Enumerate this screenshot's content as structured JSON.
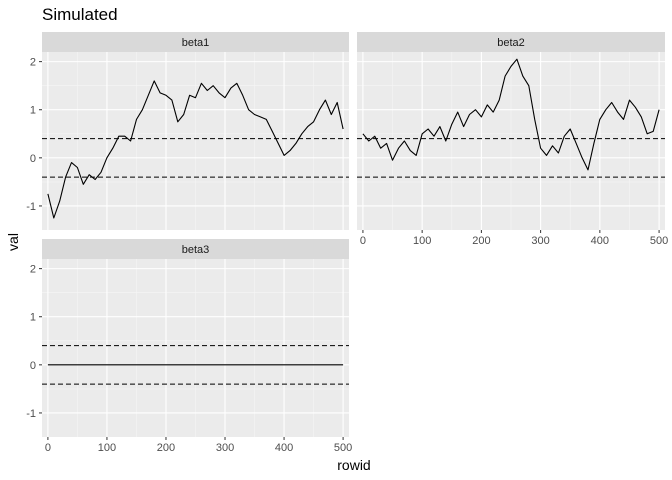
{
  "chart_data": {
    "type": "line",
    "title": "Simulated",
    "xlabel": "rowid",
    "ylabel": "val",
    "xlim": [
      -10,
      510
    ],
    "ylim": [
      -1.5,
      2.2
    ],
    "x_ticks": [
      0,
      100,
      200,
      300,
      400,
      500
    ],
    "y_ticks": [
      -1,
      0,
      1,
      2
    ],
    "reference_lines": [
      0.4,
      -0.4
    ],
    "reference_line_style": "dashed",
    "grid": true,
    "panels": [
      {
        "name": "beta1",
        "x": [
          0,
          10,
          20,
          30,
          40,
          50,
          60,
          70,
          80,
          90,
          100,
          110,
          120,
          130,
          140,
          150,
          160,
          170,
          180,
          190,
          200,
          210,
          220,
          230,
          240,
          250,
          260,
          270,
          280,
          290,
          300,
          310,
          320,
          330,
          340,
          350,
          360,
          370,
          380,
          390,
          400,
          410,
          420,
          430,
          440,
          450,
          460,
          470,
          480,
          490,
          500
        ],
        "values": [
          -0.75,
          -1.25,
          -0.9,
          -0.4,
          -0.1,
          -0.2,
          -0.55,
          -0.35,
          -0.45,
          -0.3,
          0.0,
          0.2,
          0.45,
          0.45,
          0.35,
          0.8,
          1.0,
          1.3,
          1.6,
          1.35,
          1.3,
          1.2,
          0.75,
          0.9,
          1.3,
          1.25,
          1.55,
          1.4,
          1.5,
          1.35,
          1.25,
          1.45,
          1.55,
          1.3,
          1.0,
          0.9,
          0.85,
          0.8,
          0.55,
          0.3,
          0.05,
          0.15,
          0.3,
          0.5,
          0.65,
          0.75,
          1.0,
          1.2,
          0.9,
          1.15,
          0.6
        ]
      },
      {
        "name": "beta2",
        "x": [
          0,
          10,
          20,
          30,
          40,
          50,
          60,
          70,
          80,
          90,
          100,
          110,
          120,
          130,
          140,
          150,
          160,
          170,
          180,
          190,
          200,
          210,
          220,
          230,
          240,
          250,
          260,
          270,
          280,
          290,
          300,
          310,
          320,
          330,
          340,
          350,
          360,
          370,
          380,
          390,
          400,
          410,
          420,
          430,
          440,
          450,
          460,
          470,
          480,
          490,
          500
        ],
        "values": [
          0.5,
          0.35,
          0.45,
          0.2,
          0.3,
          -0.05,
          0.2,
          0.35,
          0.15,
          0.05,
          0.5,
          0.6,
          0.45,
          0.65,
          0.35,
          0.7,
          0.95,
          0.65,
          0.9,
          1.0,
          0.85,
          1.1,
          0.95,
          1.2,
          1.7,
          1.9,
          2.05,
          1.7,
          1.5,
          0.8,
          0.2,
          0.05,
          0.25,
          0.1,
          0.45,
          0.6,
          0.3,
          0.0,
          -0.25,
          0.3,
          0.8,
          1.0,
          1.15,
          0.95,
          0.8,
          1.2,
          1.05,
          0.85,
          0.5,
          0.55,
          1.0
        ]
      },
      {
        "name": "beta3",
        "x": [
          0,
          500
        ],
        "values": [
          0,
          0
        ]
      }
    ]
  }
}
